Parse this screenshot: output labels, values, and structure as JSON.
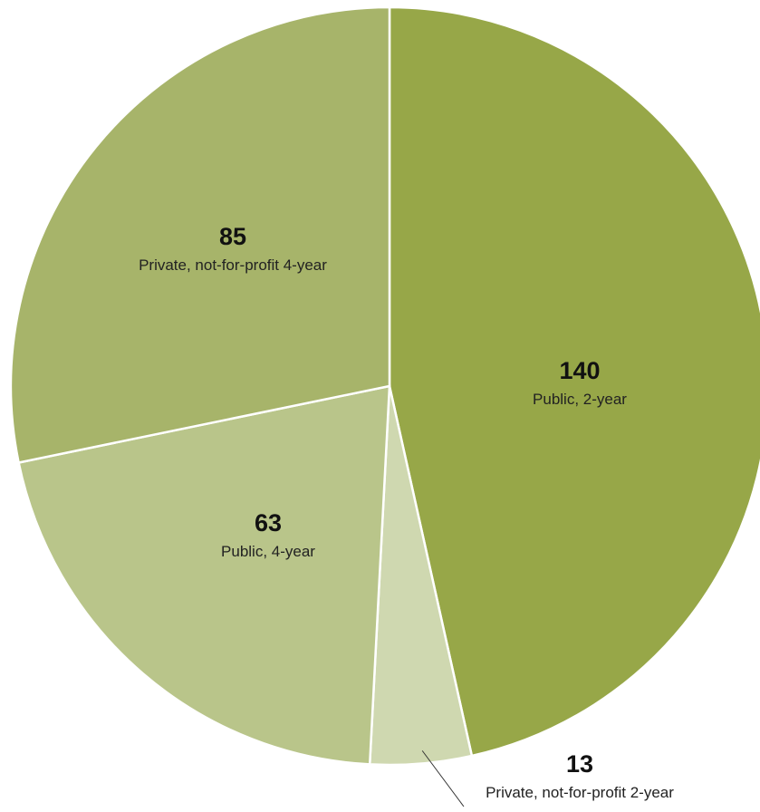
{
  "chart_data": {
    "type": "pie",
    "title": "",
    "slices": [
      {
        "label": "Public, 2-year",
        "value": 140,
        "color": "#97a748"
      },
      {
        "label": "Private, not-for-profit 2-year",
        "value": 13,
        "color": "#cfd8b0"
      },
      {
        "label": "Public, 4-year",
        "value": 63,
        "color": "#b9c58a"
      },
      {
        "label": "Private, not-for-profit 4-year",
        "value": 85,
        "color": "#a7b46a"
      }
    ],
    "start_angle_deg": 0,
    "direction": "clockwise",
    "slice_border_color": "#ffffff",
    "label_placement": "inside, except 'Private, not-for-profit 2-year' placed outside below with leader line"
  }
}
